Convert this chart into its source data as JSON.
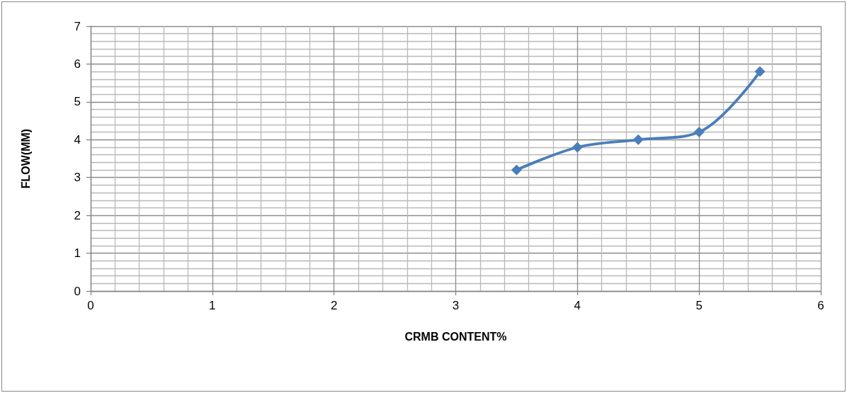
{
  "chart_data": {
    "type": "line",
    "xlabel": "CRMB CONTENT%",
    "ylabel": "FLOW(MM)",
    "x": [
      3.5,
      4,
      4.5,
      5,
      5.5
    ],
    "series": [
      {
        "color": "#4a7ebb",
        "values": [
          3.2,
          3.8,
          4.0,
          4.2,
          5.8
        ]
      }
    ],
    "xlim": [
      0,
      6
    ],
    "xticks": [
      0,
      1,
      2,
      3,
      4,
      5,
      6
    ],
    "ylim": [
      0,
      7
    ],
    "yticks": [
      0,
      1,
      2,
      3,
      4,
      5,
      6,
      7
    ],
    "grid": true,
    "marker": "diamond",
    "line_style": "solid"
  }
}
